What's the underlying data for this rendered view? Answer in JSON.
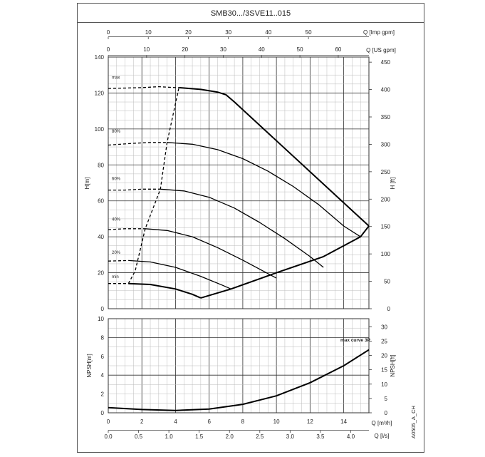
{
  "header": {
    "title": "SMB30.../3SVE11..015"
  },
  "footer": {
    "code": "A0505_A_CH"
  },
  "axes": {
    "top1": {
      "label": "Q [Imp gpm]",
      "ticks": [
        0,
        10,
        20,
        30,
        40,
        50
      ],
      "max": 65.1
    },
    "top2": {
      "label": "Q [US gpm]",
      "ticks": [
        0,
        10,
        20,
        30,
        40,
        50,
        60
      ],
      "max": 68
    },
    "h_left": {
      "label": "H[m]",
      "ticks": [
        0,
        20,
        40,
        60,
        80,
        100,
        120,
        140
      ],
      "range": [
        0,
        140
      ]
    },
    "h_right": {
      "label": "H [ft]",
      "ticks": [
        0,
        50,
        100,
        150,
        200,
        250,
        300,
        350,
        400,
        450
      ],
      "max_m": 140
    },
    "npsh_left": {
      "label": "NPSH[m]",
      "ticks": [
        0,
        2,
        4,
        6,
        8,
        10
      ],
      "range": [
        0,
        10
      ]
    },
    "npsh_right": {
      "label": "NPSH[ft]",
      "ticks": [
        0,
        5,
        10,
        15,
        20,
        25,
        30
      ],
      "max_m": 10
    },
    "q_m3h": {
      "label": "Q [m³/h]",
      "ticks": [
        0,
        2,
        4,
        6,
        8,
        10,
        12,
        14
      ],
      "range": [
        0,
        15.5
      ]
    },
    "q_ls": {
      "label": "Q [l/s]",
      "ticks": [
        "0.0",
        "0.5",
        "1.0",
        "1.5",
        "2.0",
        "2.5",
        "3.0",
        "3.5",
        "4.0"
      ],
      "max": 4.3
    }
  },
  "chart_data": [
    {
      "type": "line",
      "title": "",
      "xlabel": "Q [m³/h]",
      "ylabel": "H[m]",
      "xlim": [
        0,
        15.5
      ],
      "ylim": [
        0,
        140
      ],
      "grid": true,
      "series": [
        {
          "name": "max",
          "dashed": [
            [
              0,
              122.5
            ],
            [
              2,
              123
            ],
            [
              3,
              123.5
            ],
            [
              4,
              123
            ],
            [
              4.2,
              123
            ]
          ],
          "solid": [
            [
              4.2,
              123
            ],
            [
              5.5,
              122
            ],
            [
              6.5,
              120.5
            ],
            [
              7,
              119
            ],
            [
              7.5,
              115
            ],
            [
              15.5,
              46
            ]
          ]
        },
        {
          "name": "80%",
          "dashed": [
            [
              0,
              91
            ],
            [
              1.5,
              92
            ],
            [
              2.5,
              92.5
            ],
            [
              3.5,
              92.5
            ]
          ],
          "solid": [
            [
              3.5,
              92.5
            ],
            [
              5,
              91.5
            ],
            [
              6.5,
              88.5
            ],
            [
              8,
              83.5
            ],
            [
              9.5,
              76.5
            ],
            [
              11,
              68
            ],
            [
              12.5,
              58
            ],
            [
              14,
              46
            ],
            [
              15,
              40
            ]
          ]
        },
        {
          "name": "60%",
          "dashed": [
            [
              0,
              66
            ],
            [
              1,
              66
            ],
            [
              2,
              66.5
            ],
            [
              3.1,
              66.5
            ]
          ],
          "solid": [
            [
              3.1,
              66.5
            ],
            [
              4.5,
              65.5
            ],
            [
              6,
              62
            ],
            [
              7.5,
              56
            ],
            [
              9,
              48
            ],
            [
              10.5,
              39
            ],
            [
              12,
              29
            ],
            [
              12.8,
              23
            ]
          ]
        },
        {
          "name": "40%",
          "dashed": [
            [
              0,
              44
            ],
            [
              1,
              44.5
            ],
            [
              2.2,
              44.5
            ]
          ],
          "solid": [
            [
              2.2,
              44.5
            ],
            [
              3.5,
              43.5
            ],
            [
              5,
              40
            ],
            [
              6.5,
              34
            ],
            [
              8,
              27
            ],
            [
              9.5,
              19.5
            ],
            [
              10,
              17
            ]
          ]
        },
        {
          "name": "20%",
          "dashed": [
            [
              0,
              26.5
            ],
            [
              1.2,
              26.8
            ]
          ],
          "solid": [
            [
              1.2,
              26.8
            ],
            [
              2.5,
              26
            ],
            [
              4,
              23
            ],
            [
              5.5,
              18
            ],
            [
              6.8,
              13
            ],
            [
              7.3,
              11
            ]
          ]
        },
        {
          "name": "min",
          "dashed": [
            [
              0,
              14
            ],
            [
              1.2,
              14
            ]
          ],
          "solid": [
            [
              1.2,
              14
            ],
            [
              2.5,
              13.5
            ],
            [
              4,
              11
            ],
            [
              5,
              8
            ],
            [
              5.5,
              6
            ]
          ]
        },
        {
          "name": "",
          "solid": [
            [
              5.5,
              6
            ],
            [
              7.3,
              11
            ],
            [
              10,
              20
            ],
            [
              12.8,
              29
            ],
            [
              15,
              40
            ],
            [
              15.5,
              46
            ]
          ]
        }
      ],
      "boundary_dashed": [
        [
          1.2,
          14
        ],
        [
          1.6,
          21
        ],
        [
          2.2,
          44.5
        ],
        [
          3.1,
          66.5
        ],
        [
          3.5,
          92.5
        ],
        [
          4.2,
          123
        ]
      ],
      "curve_labels": [
        {
          "text": "max",
          "h": 128
        },
        {
          "text": "80%",
          "h": 98
        },
        {
          "text": "60%",
          "h": 71.5
        },
        {
          "text": "40%",
          "h": 49
        },
        {
          "text": "20%",
          "h": 30.5
        },
        {
          "text": "min",
          "h": 17
        }
      ]
    },
    {
      "type": "line",
      "title": "",
      "xlabel": "Q [m³/h]",
      "ylabel": "NPSH[m]",
      "xlim": [
        0,
        15.5
      ],
      "ylim": [
        0,
        10
      ],
      "grid": true,
      "legend": "max curve 3P",
      "series": [
        {
          "name": "max curve 3P",
          "solid": [
            [
              0,
              0.55
            ],
            [
              2,
              0.35
            ],
            [
              4,
              0.25
            ],
            [
              6,
              0.4
            ],
            [
              8,
              0.9
            ],
            [
              10,
              1.8
            ],
            [
              12,
              3.2
            ],
            [
              14,
              5
            ],
            [
              15.5,
              6.7
            ]
          ]
        }
      ]
    }
  ]
}
